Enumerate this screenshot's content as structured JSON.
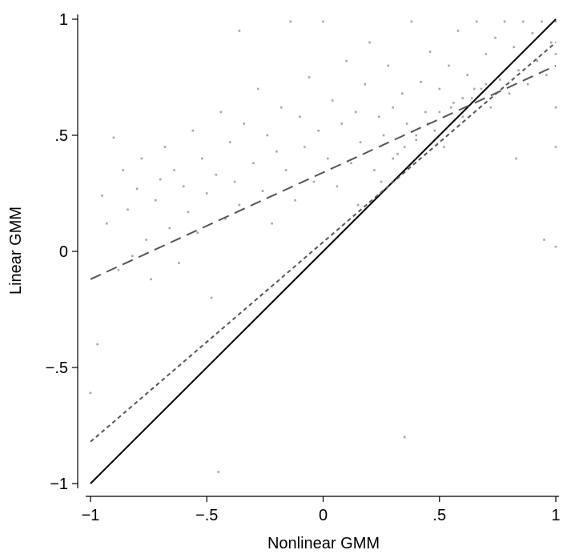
{
  "chart_data": {
    "type": "scatter",
    "title": "",
    "xlabel": "Nonlinear GMM",
    "ylabel": "Linear GMM",
    "xlim": [
      -1.05,
      1.02
    ],
    "ylim": [
      -1.05,
      1.02
    ],
    "grid": false,
    "legend": "none",
    "x_ticks": [
      {
        "value": -1,
        "label": "−1"
      },
      {
        "value": -0.5,
        "label": "−.5"
      },
      {
        "value": 0,
        "label": "0"
      },
      {
        "value": 0.5,
        "label": ".5"
      },
      {
        "value": 1,
        "label": "1"
      }
    ],
    "y_ticks": [
      {
        "value": -1,
        "label": "−1"
      },
      {
        "value": -0.5,
        "label": "−.5"
      },
      {
        "value": 0,
        "label": "0"
      },
      {
        "value": 0.5,
        "label": ".5"
      },
      {
        "value": 1,
        "label": "1"
      }
    ],
    "colors": {
      "points": "#a6a6a6",
      "identity_line": "#000000",
      "dashed_line": "#555555",
      "dotted_line": "#555555",
      "axis": "#000000"
    },
    "series": [
      {
        "kind": "points",
        "points": [
          [
            -1.0,
            -0.61
          ],
          [
            -0.97,
            -0.4
          ],
          [
            -0.95,
            0.24
          ],
          [
            -0.93,
            0.12
          ],
          [
            -0.9,
            0.49
          ],
          [
            -0.88,
            -0.08
          ],
          [
            -0.86,
            0.35
          ],
          [
            -0.84,
            0.18
          ],
          [
            -0.82,
            -0.02
          ],
          [
            -0.8,
            0.27
          ],
          [
            -0.78,
            0.4
          ],
          [
            -0.76,
            0.05
          ],
          [
            -0.74,
            -0.12
          ],
          [
            -0.72,
            0.22
          ],
          [
            -0.7,
            0.31
          ],
          [
            -0.68,
            0.45
          ],
          [
            -0.66,
            0.1
          ],
          [
            -0.64,
            0.35
          ],
          [
            -0.62,
            -0.05
          ],
          [
            -0.6,
            0.28
          ],
          [
            -0.58,
            0.17
          ],
          [
            -0.56,
            0.52
          ],
          [
            -0.54,
            0.08
          ],
          [
            -0.52,
            0.4
          ],
          [
            -0.5,
            0.25
          ],
          [
            -0.48,
            -0.2
          ],
          [
            -0.46,
            0.33
          ],
          [
            -0.44,
            0.6
          ],
          [
            -0.42,
            0.14
          ],
          [
            -0.4,
            0.47
          ],
          [
            -0.38,
            0.3
          ],
          [
            -0.36,
            0.2
          ],
          [
            -0.34,
            0.55
          ],
          [
            -0.32,
            -0.32
          ],
          [
            -0.3,
            0.38
          ],
          [
            -0.28,
            0.7
          ],
          [
            -0.26,
            0.26
          ],
          [
            -0.24,
            0.5
          ],
          [
            -0.22,
            0.12
          ],
          [
            -0.2,
            0.43
          ],
          [
            -0.18,
            0.62
          ],
          [
            -0.16,
            0.35
          ],
          [
            -0.14,
            0.99
          ],
          [
            -0.12,
            0.22
          ],
          [
            -0.1,
            0.58
          ],
          [
            -0.08,
            0.45
          ],
          [
            -0.06,
            0.75
          ],
          [
            -0.04,
            0.3
          ],
          [
            -0.02,
            0.52
          ],
          [
            0.0,
            0.99
          ],
          [
            0.02,
            0.4
          ],
          [
            0.04,
            0.65
          ],
          [
            0.06,
            0.28
          ],
          [
            0.08,
            0.55
          ],
          [
            0.1,
            0.82
          ],
          [
            0.12,
            0.38
          ],
          [
            0.14,
            0.6
          ],
          [
            0.16,
            0.47
          ],
          [
            0.18,
            0.72
          ],
          [
            0.2,
            0.9
          ],
          [
            0.22,
            0.35
          ],
          [
            0.24,
            0.58
          ],
          [
            0.26,
            0.5
          ],
          [
            0.28,
            0.8
          ],
          [
            0.3,
            0.62
          ],
          [
            0.32,
            0.42
          ],
          [
            0.34,
            0.68
          ],
          [
            0.36,
            0.55
          ],
          [
            0.38,
            0.99
          ],
          [
            0.4,
            0.48
          ],
          [
            0.42,
            0.73
          ],
          [
            0.44,
            0.6
          ],
          [
            0.46,
            0.86
          ],
          [
            0.48,
            0.52
          ],
          [
            0.5,
            0.7
          ],
          [
            0.52,
            0.45
          ],
          [
            0.54,
            0.8
          ],
          [
            0.56,
            0.64
          ],
          [
            0.58,
            0.95
          ],
          [
            0.6,
            0.58
          ],
          [
            0.62,
            0.76
          ],
          [
            0.64,
            0.66
          ],
          [
            0.66,
            0.99
          ],
          [
            0.68,
            0.7
          ],
          [
            0.7,
            0.85
          ],
          [
            0.72,
            0.62
          ],
          [
            0.74,
            0.92
          ],
          [
            0.76,
            0.74
          ],
          [
            0.78,
            0.99
          ],
          [
            0.8,
            0.68
          ],
          [
            0.82,
            0.88
          ],
          [
            0.84,
            0.78
          ],
          [
            0.86,
            0.99
          ],
          [
            0.88,
            0.72
          ],
          [
            0.9,
            0.94
          ],
          [
            0.92,
            0.82
          ],
          [
            0.94,
            0.99
          ],
          [
            0.96,
            0.76
          ],
          [
            0.98,
            0.9
          ],
          [
            1.0,
            0.99
          ],
          [
            1.0,
            0.85
          ],
          [
            1.0,
            0.62
          ],
          [
            1.0,
            0.45
          ],
          [
            1.0,
            0.02
          ],
          [
            0.95,
            0.05
          ],
          [
            0.83,
            0.4
          ],
          [
            0.35,
            -0.8
          ],
          [
            -0.45,
            -0.95
          ],
          [
            -0.36,
            0.95
          ],
          [
            0.15,
            0.2
          ],
          [
            0.25,
            0.3
          ],
          [
            0.3,
            0.4
          ],
          [
            0.35,
            0.45
          ],
          [
            0.4,
            0.5
          ],
          [
            0.45,
            0.55
          ],
          [
            0.5,
            0.6
          ],
          [
            0.55,
            0.62
          ],
          [
            0.6,
            0.66
          ],
          [
            0.65,
            0.7
          ],
          [
            0.7,
            0.72
          ]
        ]
      },
      {
        "kind": "line",
        "style": "solid",
        "x": [
          -1,
          1
        ],
        "y": [
          -1,
          1
        ]
      },
      {
        "kind": "line",
        "style": "dashed",
        "x": [
          -1,
          1
        ],
        "y": [
          -0.12,
          0.8
        ]
      },
      {
        "kind": "line",
        "style": "dotted",
        "x": [
          -1,
          1
        ],
        "y": [
          -0.82,
          0.9
        ]
      }
    ]
  }
}
